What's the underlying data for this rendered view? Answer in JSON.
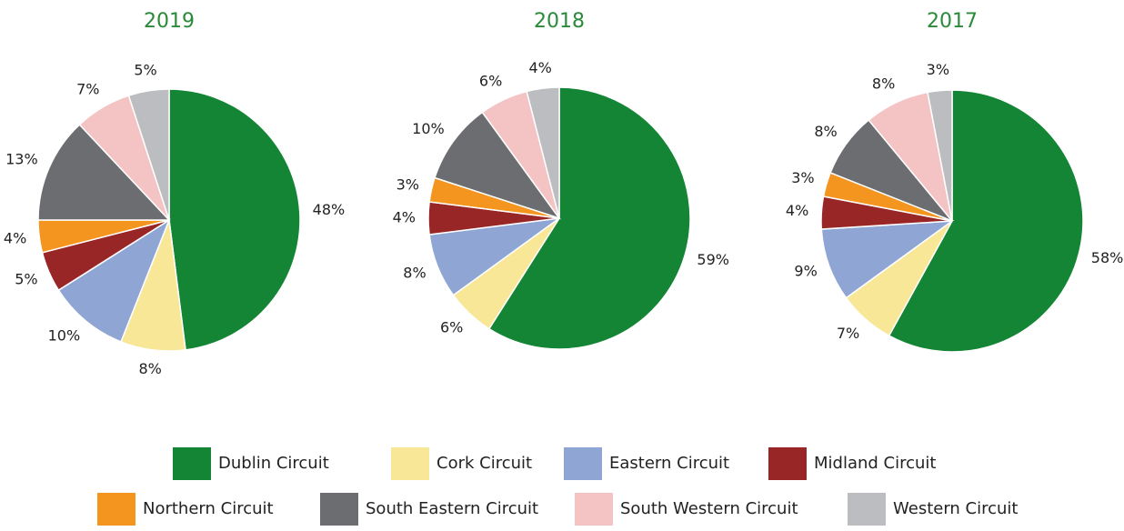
{
  "chart_data": [
    {
      "type": "pie",
      "title": "2019",
      "categories": [
        "Dublin Circuit",
        "Cork Circuit",
        "Eastern Circuit",
        "Midland Circuit",
        "Northern Circuit",
        "South Eastern Circuit",
        "South Western Circuit",
        "Western Circuit"
      ],
      "values": [
        48,
        8,
        10,
        5,
        4,
        13,
        7,
        5
      ],
      "value_labels": [
        "48%",
        "8%",
        "10%",
        "5%",
        "4%",
        "13%",
        "7%",
        "5%"
      ],
      "colors": [
        "#138535",
        "#f7e797",
        "#8fa6d4",
        "#992626",
        "#f4951f",
        "#6c6d70",
        "#f4c4c4",
        "#bcbdc0"
      ]
    },
    {
      "type": "pie",
      "title": "2018",
      "categories": [
        "Dublin Circuit",
        "Cork Circuit",
        "Eastern Circuit",
        "Midland Circuit",
        "Northern Circuit",
        "South Eastern Circuit",
        "South Western Circuit",
        "Western Circuit"
      ],
      "values": [
        59,
        6,
        8,
        4,
        3,
        10,
        6,
        4
      ],
      "value_labels": [
        "59%",
        "6%",
        "8%",
        "4%",
        "3%",
        "10%",
        "6%",
        "4%"
      ],
      "colors": [
        "#138535",
        "#f7e797",
        "#8fa6d4",
        "#992626",
        "#f4951f",
        "#6c6d70",
        "#f4c4c4",
        "#bcbdc0"
      ]
    },
    {
      "type": "pie",
      "title": "2017",
      "categories": [
        "Dublin Circuit",
        "Cork Circuit",
        "Eastern Circuit",
        "Midland Circuit",
        "Northern Circuit",
        "South Eastern Circuit",
        "South Western Circuit",
        "Western Circuit"
      ],
      "values": [
        58,
        7,
        9,
        4,
        3,
        8,
        8,
        3
      ],
      "value_labels": [
        "58%",
        "7%",
        "9%",
        "4%",
        "3%",
        "8%",
        "8%",
        "3%"
      ],
      "colors": [
        "#138535",
        "#f7e797",
        "#8fa6d4",
        "#992626",
        "#f4951f",
        "#6c6d70",
        "#f4c4c4",
        "#bcbdc0"
      ]
    }
  ]
}
